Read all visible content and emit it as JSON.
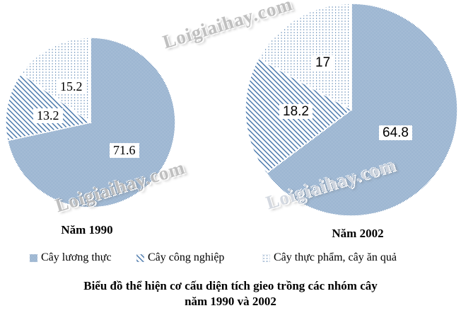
{
  "watermark": {
    "text": "Loigiaihay.com"
  },
  "colors": {
    "pattern_blue": "#4273a8",
    "background": "#ffffff",
    "label_text": "#000000"
  },
  "chart_data": [
    {
      "type": "pie",
      "title": "Năm 1990",
      "unit": "%",
      "direction": "clockwise",
      "start_angle": "12 o'clock",
      "categories": [
        "Cây lương thực",
        "Cây công nghiệp",
        "Cây thực phẩm, cây ăn quả"
      ],
      "values": [
        71.6,
        13.2,
        15.2
      ],
      "labels": [
        "71.6",
        "13.2",
        "15.2"
      ]
    },
    {
      "type": "pie",
      "title": "Năm 2002",
      "unit": "%",
      "direction": "clockwise",
      "start_angle": "12 o'clock",
      "categories": [
        "Cây lương thực",
        "Cây công nghiệp",
        "Cây thực phẩm, cây ăn quả"
      ],
      "values": [
        64.8,
        18.2,
        17
      ],
      "labels": [
        "64.8",
        "18.2",
        "17"
      ]
    }
  ],
  "legend": {
    "items": [
      {
        "label": "Cây lương thực",
        "pattern": "checker"
      },
      {
        "label": "Cây công nghiệp",
        "pattern": "diagonal"
      },
      {
        "label": "Cây thực phẩm, cây ăn quả",
        "pattern": "dots"
      }
    ]
  },
  "caption": {
    "line1": "Biểu đồ thể hiện cơ cấu diện tích gieo trồng các nhóm cây",
    "line2": "năm 1990 và 2002"
  }
}
